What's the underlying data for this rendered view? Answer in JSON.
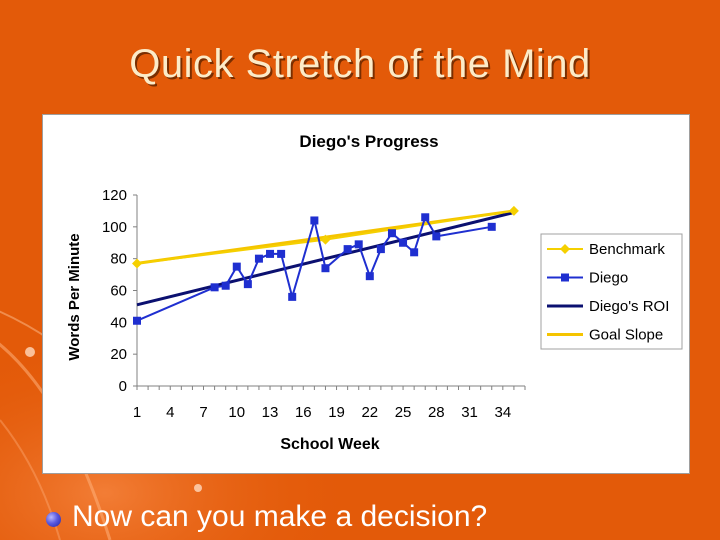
{
  "slide": {
    "title": "Quick Stretch of the Mind",
    "bullet": "Now can you make a decision?",
    "background_color": "#E35A09"
  },
  "chart_data": {
    "type": "line",
    "title": "Diego's Progress",
    "xlabel": "School Week",
    "ylabel": "Words Per Minute",
    "xlim": [
      1,
      36
    ],
    "ylim": [
      0,
      120
    ],
    "x_ticks": [
      "1",
      "4",
      "7",
      "10",
      "13",
      "16",
      "19",
      "22",
      "25",
      "28",
      "31",
      "34"
    ],
    "y_ticks": [
      "0",
      "20",
      "40",
      "60",
      "80",
      "100",
      "120"
    ],
    "grid": false,
    "legend_position": "right",
    "series": [
      {
        "name": "Benchmark",
        "color": "#F5D000",
        "marker": "diamond",
        "x": [
          1,
          18,
          35
        ],
        "y": [
          77,
          92,
          110
        ]
      },
      {
        "name": "Diego",
        "color": "#1F2FD0",
        "marker": "square",
        "x": [
          1,
          8,
          9,
          10,
          11,
          12,
          13,
          14,
          15,
          17,
          18,
          20,
          21,
          22,
          23,
          24,
          25,
          26,
          27,
          28,
          33
        ],
        "y": [
          41,
          62,
          63,
          75,
          64,
          80,
          83,
          83,
          56,
          104,
          74,
          86,
          89,
          69,
          86,
          96,
          90,
          84,
          106,
          94,
          100
        ]
      },
      {
        "name": "Diego's ROI",
        "color": "#0B1070",
        "marker": "none",
        "x": [
          1,
          35
        ],
        "y": [
          51,
          109
        ]
      },
      {
        "name": "Goal Slope",
        "color": "#F5C400",
        "marker": "none",
        "x": [
          1,
          35
        ],
        "y": [
          77,
          110
        ]
      }
    ]
  }
}
